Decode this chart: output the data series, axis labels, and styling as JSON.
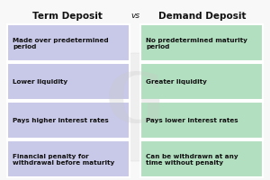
{
  "title_left": "Term Deposit",
  "title_vs": "vs",
  "title_right": "Demand Deposit",
  "left_color": "#c8c8e8",
  "right_color": "#b2dfc0",
  "bg_color": "#f8f8f8",
  "text_color": "#111111",
  "rows": [
    {
      "left": "Made over predetermined\nperiod",
      "right": "No predetermined maturity\nperiod"
    },
    {
      "left": "Lower liquidity",
      "right": "Greater liquidity"
    },
    {
      "left": "Pays higher interest rates",
      "right": "Pays lower interest rates"
    },
    {
      "left": "Financial penalty for\nwithdrawal before maturity",
      "right": "Can be withdrawn at any\ntime without penalty"
    }
  ],
  "figsize": [
    3.0,
    2.01
  ],
  "dpi": 100,
  "title_fontsize": 7.5,
  "vs_fontsize": 6.5,
  "cell_fontsize": 5.2
}
